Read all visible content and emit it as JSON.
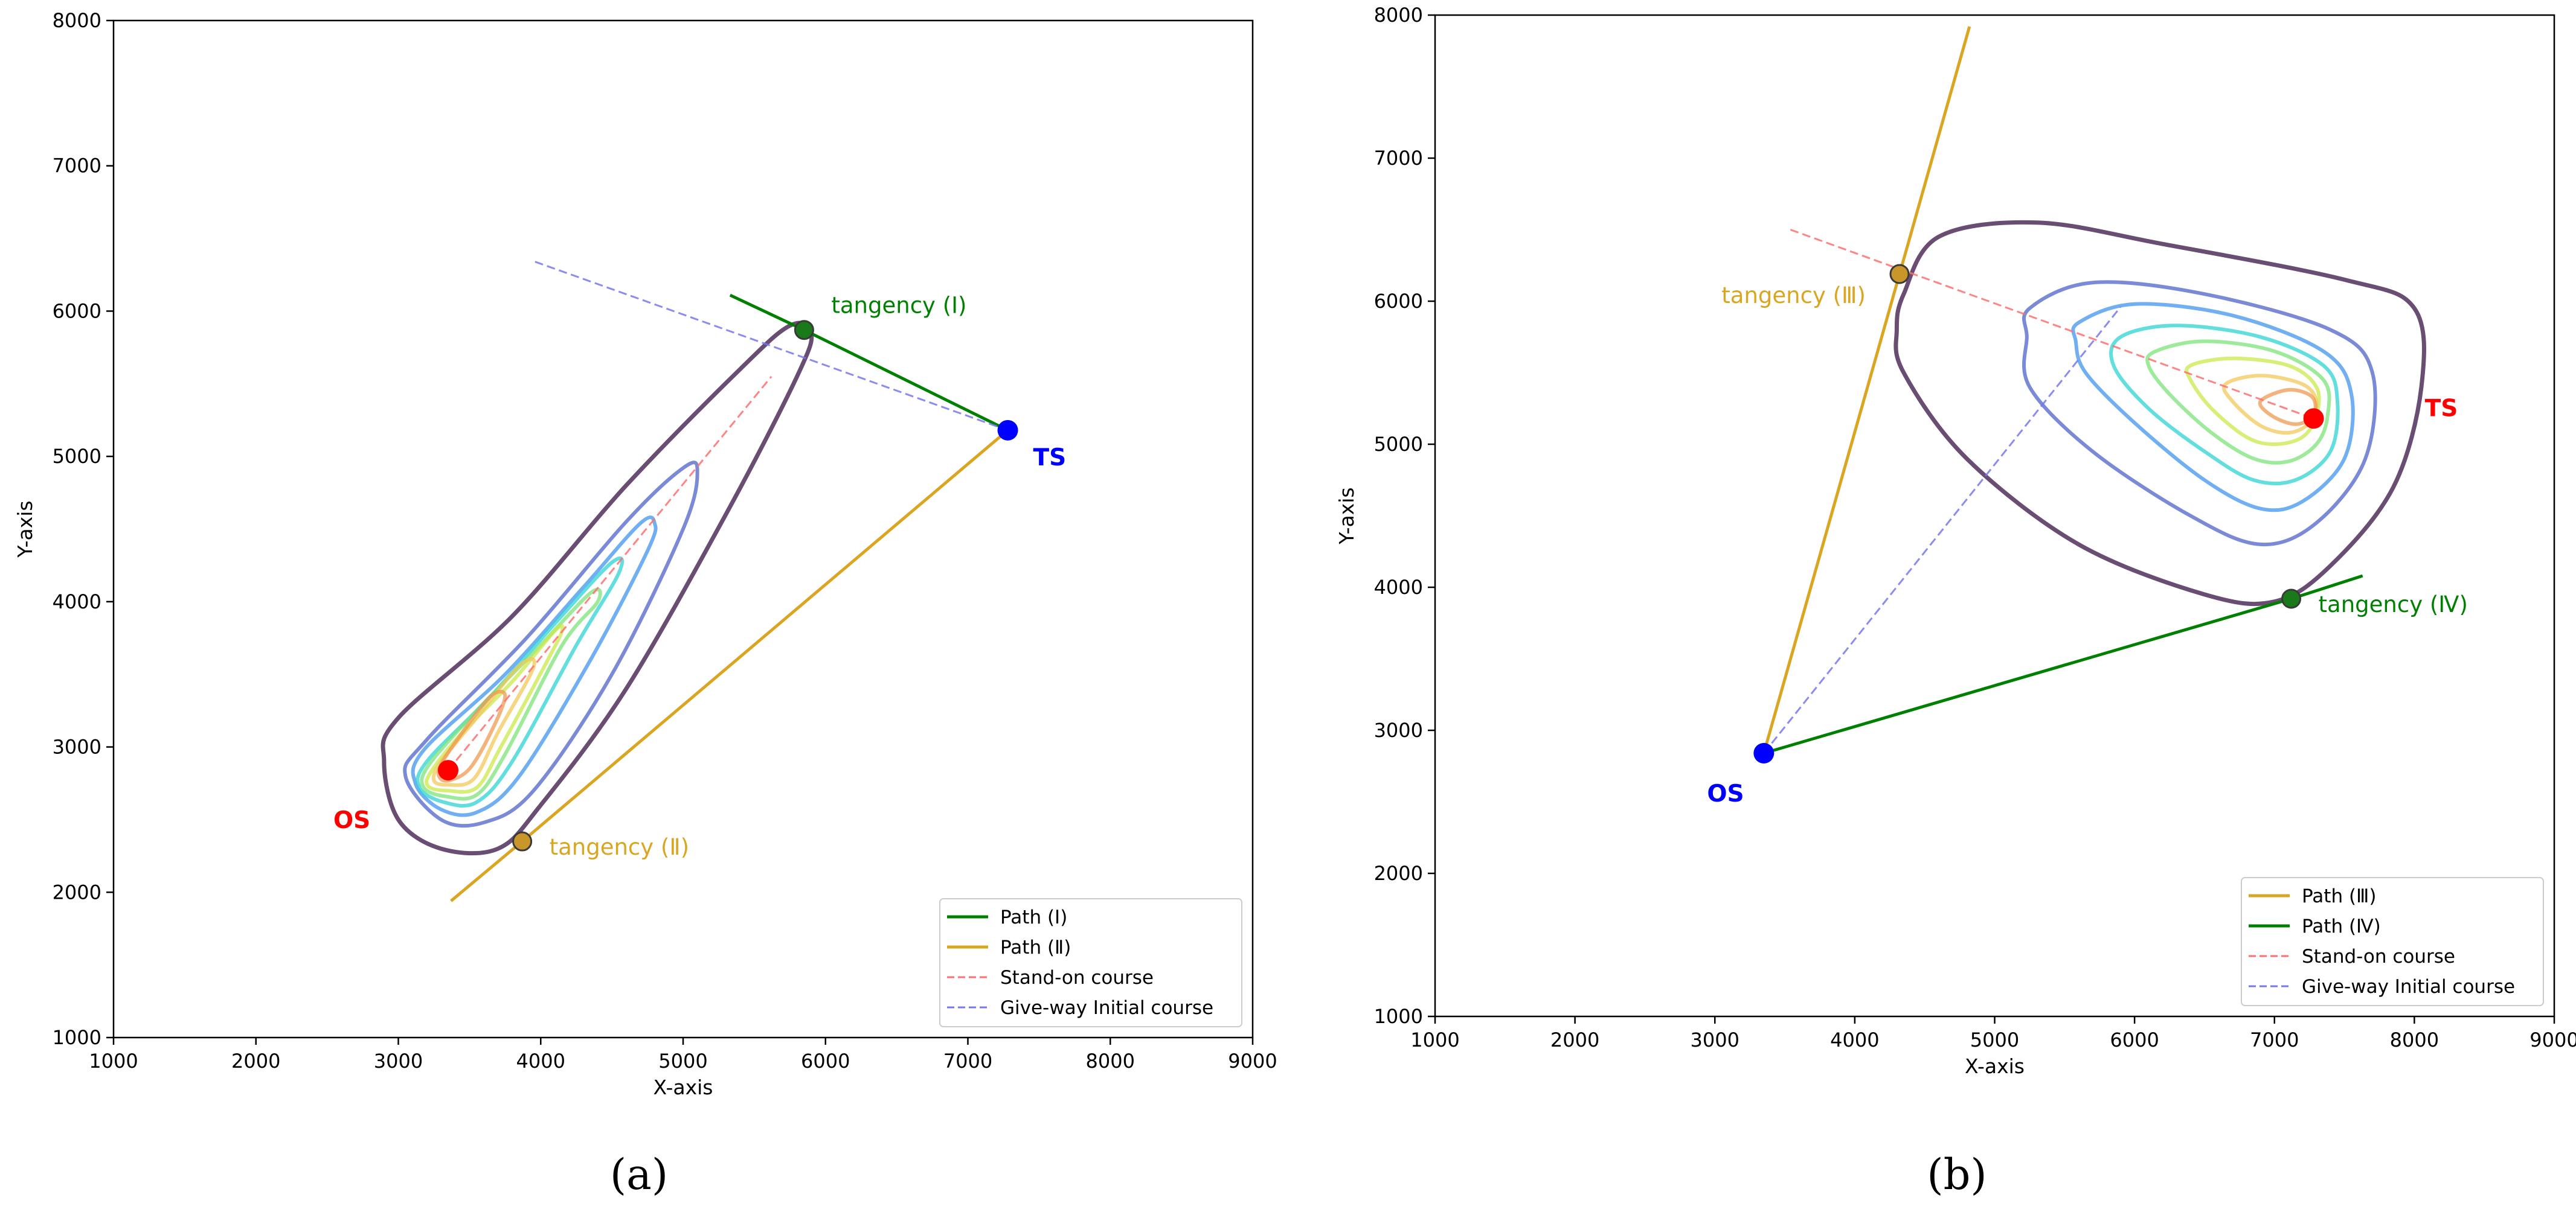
{
  "chart_data": [
    {
      "panel_label": "(a)",
      "type": "line",
      "xlabel": "X-axis",
      "ylabel": "Y-axis",
      "xlim": [
        1000,
        9000
      ],
      "ylim": [
        1000,
        8000
      ],
      "xticks": [
        "1000",
        "2000",
        "3000",
        "4000",
        "5000",
        "6000",
        "7000",
        "8000",
        "9000"
      ],
      "yticks": [
        "1000",
        "2000",
        "3000",
        "4000",
        "5000",
        "6000",
        "7000",
        "8000"
      ],
      "os": {
        "label": "OS",
        "x": 3350,
        "y": 2840,
        "color": "#ff0000"
      },
      "ts": {
        "label": "TS",
        "x": 7280,
        "y": 5180,
        "color": "#0000ff"
      },
      "contour_center": {
        "x": 3350,
        "y": 2840
      },
      "contour_colors": [
        "#5a3a63",
        "#4f63c9",
        "#3f94ee",
        "#2ed3d3",
        "#7ee37a",
        "#c9e84a",
        "#f3c85a",
        "#ef9a52"
      ],
      "contours": [
        [
          [
            3300,
            2300
          ],
          [
            3700,
            2300
          ],
          [
            4000,
            2600
          ],
          [
            4600,
            3400
          ],
          [
            5300,
            4600
          ],
          [
            5800,
            5550
          ],
          [
            5900,
            5850
          ],
          [
            5750,
            5900
          ],
          [
            5400,
            5600
          ],
          [
            4600,
            4800
          ],
          [
            3800,
            3900
          ],
          [
            3000,
            3200
          ],
          [
            2900,
            2900
          ],
          [
            3000,
            2500
          ]
        ],
        [
          [
            3300,
            2500
          ],
          [
            3600,
            2480
          ],
          [
            3950,
            2700
          ],
          [
            4500,
            3500
          ],
          [
            5000,
            4500
          ],
          [
            5100,
            4900
          ],
          [
            5000,
            4920
          ],
          [
            4600,
            4550
          ],
          [
            3900,
            3750
          ],
          [
            3200,
            3050
          ],
          [
            3050,
            2800
          ]
        ],
        [
          [
            3300,
            2570
          ],
          [
            3550,
            2550
          ],
          [
            3850,
            2800
          ],
          [
            4350,
            3600
          ],
          [
            4750,
            4350
          ],
          [
            4800,
            4540
          ],
          [
            4700,
            4540
          ],
          [
            4300,
            4100
          ],
          [
            3750,
            3500
          ],
          [
            3180,
            2980
          ],
          [
            3120,
            2750
          ]
        ],
        [
          [
            3320,
            2620
          ],
          [
            3550,
            2620
          ],
          [
            3800,
            2900
          ],
          [
            4250,
            3700
          ],
          [
            4550,
            4200
          ],
          [
            4500,
            4270
          ],
          [
            4100,
            3850
          ],
          [
            3650,
            3350
          ],
          [
            3200,
            2900
          ],
          [
            3150,
            2720
          ]
        ],
        [
          [
            3330,
            2660
          ],
          [
            3550,
            2670
          ],
          [
            3750,
            2950
          ],
          [
            4150,
            3700
          ],
          [
            4400,
            4000
          ],
          [
            4350,
            4060
          ],
          [
            3950,
            3650
          ],
          [
            3550,
            3250
          ],
          [
            3210,
            2870
          ],
          [
            3180,
            2720
          ]
        ],
        [
          [
            3340,
            2700
          ],
          [
            3550,
            2720
          ],
          [
            3720,
            3000
          ],
          [
            4050,
            3600
          ],
          [
            4150,
            3800
          ],
          [
            4100,
            3800
          ],
          [
            3800,
            3450
          ],
          [
            3450,
            3100
          ],
          [
            3230,
            2830
          ],
          [
            3210,
            2730
          ]
        ],
        [
          [
            3350,
            2740
          ],
          [
            3530,
            2780
          ],
          [
            3700,
            3100
          ],
          [
            3950,
            3550
          ],
          [
            3850,
            3560
          ],
          [
            3550,
            3200
          ],
          [
            3300,
            2900
          ],
          [
            3250,
            2770
          ]
        ],
        [
          [
            3360,
            2770
          ],
          [
            3500,
            2850
          ],
          [
            3650,
            3100
          ],
          [
            3750,
            3350
          ],
          [
            3650,
            3350
          ],
          [
            3450,
            3100
          ],
          [
            3300,
            2880
          ],
          [
            3290,
            2790
          ]
        ]
      ],
      "lines": [
        {
          "name": "Path (Ⅰ)",
          "color": "#008000",
          "style": "solid",
          "x": [
            5330,
            5850,
            7280
          ],
          "y": [
            6110,
            5870,
            5180
          ]
        },
        {
          "name": "Path (Ⅱ)",
          "color": "#daa520",
          "style": "solid",
          "x": [
            3370,
            3870,
            7280
          ],
          "y": [
            1940,
            2350,
            5180
          ]
        },
        {
          "name": "Stand-on course",
          "color": "#ff6f6f",
          "style": "dashed",
          "x": [
            3350,
            5620
          ],
          "y": [
            2840,
            5550
          ]
        },
        {
          "name": "Give-way Initial course",
          "color": "#7777ee",
          "style": "dashed",
          "x": [
            3960,
            7280
          ],
          "y": [
            6340,
            5180
          ]
        }
      ],
      "tangency_points": [
        {
          "label": "tangency (Ⅰ)",
          "x": 5850,
          "y": 5870,
          "color": "#1a7a1a",
          "label_color": "#008000",
          "label_pos": "right-above"
        },
        {
          "label": "tangency (Ⅱ)",
          "x": 3870,
          "y": 2350,
          "color": "#c9962a",
          "label_color": "#daa520",
          "label_pos": "right"
        }
      ],
      "legend": {
        "placement": "lower-right",
        "entries": [
          "Path (Ⅰ)",
          "Path (Ⅱ)",
          "Stand-on course",
          "Give-way Initial course"
        ]
      }
    },
    {
      "panel_label": "(b)",
      "type": "line",
      "xlabel": "X-axis",
      "ylabel": "Y-axis",
      "xlim": [
        1000,
        9000
      ],
      "ylim": [
        1000,
        8000
      ],
      "xticks": [
        "1000",
        "2000",
        "3000",
        "4000",
        "5000",
        "6000",
        "7000",
        "8000",
        "9000"
      ],
      "yticks": [
        "1000",
        "2000",
        "3000",
        "4000",
        "5000",
        "6000",
        "7000",
        "8000"
      ],
      "os": {
        "label": "OS",
        "x": 3350,
        "y": 2840,
        "color": "#0000ff"
      },
      "ts": {
        "label": "TS",
        "x": 7280,
        "y": 5180,
        "color": "#ff0000"
      },
      "contour_colors": [
        "#5a3a63",
        "#4f63c9",
        "#3f94ee",
        "#2ed3d3",
        "#7ee37a",
        "#c9e84a",
        "#f3c85a",
        "#ef9a52"
      ],
      "contours": [
        [
          [
            4350,
            6050
          ],
          [
            4600,
            6450
          ],
          [
            5300,
            6550
          ],
          [
            6200,
            6400
          ],
          [
            7500,
            6150
          ],
          [
            8000,
            5950
          ],
          [
            8050,
            5400
          ],
          [
            7850,
            4700
          ],
          [
            7400,
            4150
          ],
          [
            7000,
            3900
          ],
          [
            6500,
            3950
          ],
          [
            5600,
            4300
          ],
          [
            4800,
            4900
          ],
          [
            4350,
            5500
          ],
          [
            4300,
            5800
          ]
        ],
        [
          [
            5250,
            5950
          ],
          [
            5700,
            6130
          ],
          [
            6500,
            6050
          ],
          [
            7400,
            5800
          ],
          [
            7700,
            5500
          ],
          [
            7650,
            4900
          ],
          [
            7300,
            4450
          ],
          [
            6900,
            4300
          ],
          [
            6400,
            4500
          ],
          [
            5700,
            4950
          ],
          [
            5250,
            5400
          ],
          [
            5230,
            5750
          ]
        ],
        [
          [
            5600,
            5850
          ],
          [
            6000,
            5980
          ],
          [
            6700,
            5900
          ],
          [
            7350,
            5650
          ],
          [
            7550,
            5350
          ],
          [
            7500,
            4900
          ],
          [
            7200,
            4600
          ],
          [
            6900,
            4550
          ],
          [
            6500,
            4750
          ],
          [
            6000,
            5150
          ],
          [
            5650,
            5500
          ],
          [
            5580,
            5720
          ]
        ],
        [
          [
            5900,
            5750
          ],
          [
            6300,
            5830
          ],
          [
            6900,
            5750
          ],
          [
            7350,
            5550
          ],
          [
            7450,
            5300
          ],
          [
            7400,
            4950
          ],
          [
            7150,
            4750
          ],
          [
            6850,
            4750
          ],
          [
            6500,
            4950
          ],
          [
            6100,
            5250
          ],
          [
            5850,
            5550
          ]
        ],
        [
          [
            6150,
            5650
          ],
          [
            6500,
            5720
          ],
          [
            7000,
            5650
          ],
          [
            7350,
            5450
          ],
          [
            7380,
            5200
          ],
          [
            7300,
            5000
          ],
          [
            7100,
            4880
          ],
          [
            6850,
            4900
          ],
          [
            6550,
            5080
          ],
          [
            6250,
            5350
          ],
          [
            6100,
            5550
          ]
        ],
        [
          [
            6400,
            5550
          ],
          [
            6700,
            5600
          ],
          [
            7100,
            5550
          ],
          [
            7300,
            5400
          ],
          [
            7300,
            5200
          ],
          [
            7200,
            5050
          ],
          [
            7000,
            5000
          ],
          [
            6800,
            5050
          ],
          [
            6550,
            5250
          ],
          [
            6400,
            5450
          ]
        ],
        [
          [
            6650,
            5420
          ],
          [
            6900,
            5480
          ],
          [
            7200,
            5420
          ],
          [
            7300,
            5300
          ],
          [
            7250,
            5150
          ],
          [
            7100,
            5080
          ],
          [
            6900,
            5130
          ],
          [
            6700,
            5300
          ]
        ],
        [
          [
            6900,
            5300
          ],
          [
            7100,
            5380
          ],
          [
            7270,
            5330
          ],
          [
            7280,
            5200
          ],
          [
            7150,
            5140
          ],
          [
            6980,
            5200
          ]
        ]
      ],
      "lines": [
        {
          "name": "Path (Ⅲ)",
          "color": "#daa520",
          "style": "solid",
          "x": [
            3350,
            4320,
            4820
          ],
          "y": [
            2840,
            6190,
            7920
          ]
        },
        {
          "name": "Path (Ⅳ)",
          "color": "#008000",
          "style": "solid",
          "x": [
            3350,
            7120,
            7630
          ],
          "y": [
            2840,
            3920,
            4080
          ]
        },
        {
          "name": "Stand-on course",
          "color": "#ff6f6f",
          "style": "dashed",
          "x": [
            3540,
            7280
          ],
          "y": [
            6500,
            5180
          ]
        },
        {
          "name": "Give-way Initial course",
          "color": "#7777ee",
          "style": "dashed",
          "x": [
            3350,
            5900
          ],
          "y": [
            2840,
            5960
          ]
        }
      ],
      "tangency_points": [
        {
          "label": "tangency (Ⅲ)",
          "x": 4320,
          "y": 6190,
          "color": "#c9962a",
          "label_color": "#daa520",
          "label_pos": "left-below"
        },
        {
          "label": "tangency (Ⅳ)",
          "x": 7120,
          "y": 3920,
          "color": "#1a7a1a",
          "label_color": "#008000",
          "label_pos": "right"
        }
      ],
      "legend": {
        "placement": "lower-right",
        "entries": [
          "Path (Ⅲ)",
          "Path (Ⅳ)",
          "Stand-on course",
          "Give-way Initial course"
        ]
      }
    }
  ]
}
